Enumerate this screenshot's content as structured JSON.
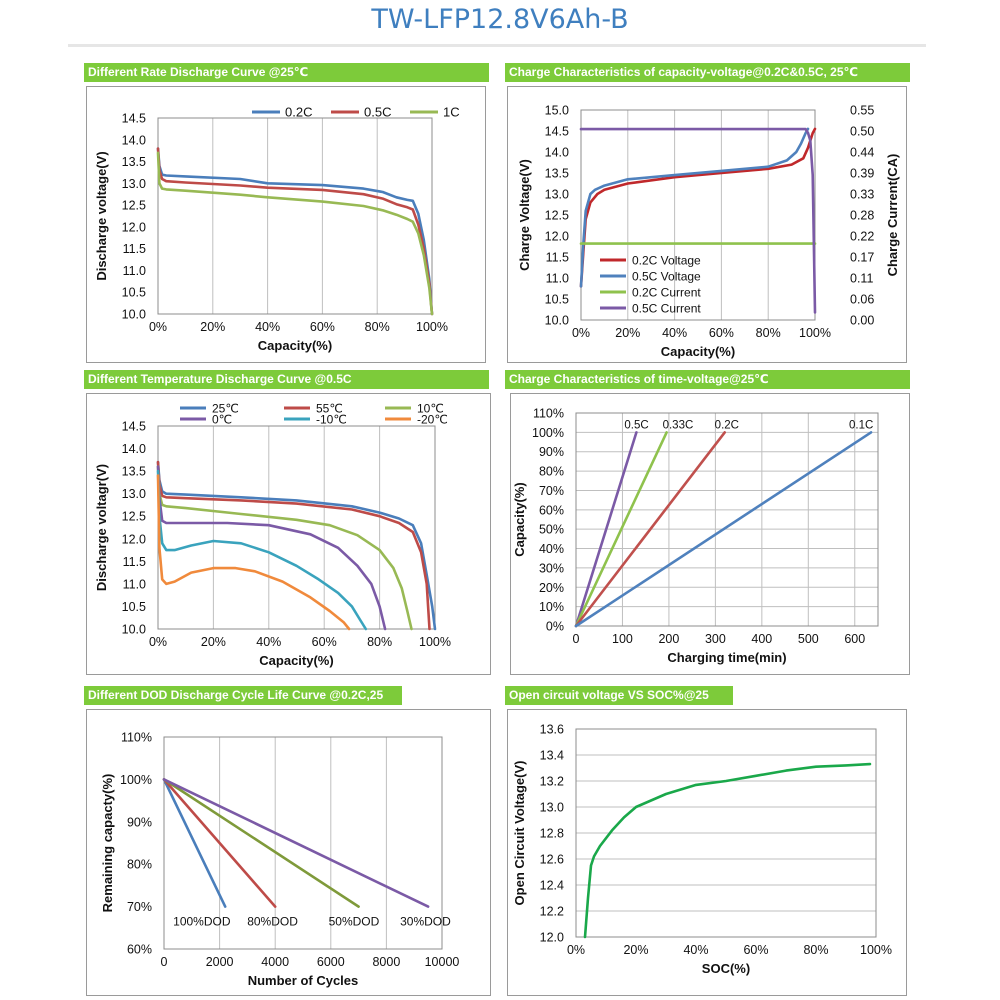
{
  "title": "TW-LFP12.8V6Ah-B",
  "headers": [
    "Different Rate Discharge Curve @25℃",
    "Charge  Characteristics of capacity-voltage@0.2C&0.5C, 25℃",
    "Different Temperature Discharge Curve @0.5C",
    "Charge  Characteristics of time-voltage@25℃",
    "Different DOD Discharge Cycle Life Curve @0.2C,25",
    "Open circuit voltage VS SOC%@25"
  ],
  "chart_data": [
    {
      "type": "line",
      "title": "Different Rate Discharge Curve @25℃",
      "xlabel": "Capacity(%)",
      "ylabel": "Discharge voltage(V)",
      "xlim": [
        0,
        100
      ],
      "ylim": [
        10.0,
        14.5
      ],
      "xticks": [
        "0%",
        "20%",
        "40%",
        "60%",
        "80%",
        "100%"
      ],
      "yticks": [
        "10.0",
        "10.5",
        "11.0",
        "11.5",
        "12.0",
        "12.5",
        "13.0",
        "13.5",
        "14.0",
        "14.5"
      ],
      "grid": "vertical",
      "legend": "top",
      "series": [
        {
          "name": "0.2C",
          "color": "#4a7ebb",
          "x": [
            0,
            0.5,
            1.5,
            3,
            10,
            30,
            40,
            60,
            75,
            82,
            87,
            91,
            93,
            95,
            97,
            99,
            100
          ],
          "y": [
            13.8,
            13.4,
            13.2,
            13.18,
            13.16,
            13.1,
            13.0,
            12.96,
            12.88,
            12.8,
            12.68,
            12.62,
            12.6,
            12.3,
            11.7,
            10.8,
            10.0
          ]
        },
        {
          "name": "0.5C",
          "color": "#be4b48",
          "x": [
            0,
            0.5,
            1.5,
            3,
            10,
            30,
            40,
            60,
            75,
            82,
            87,
            91,
            93,
            95,
            97,
            99,
            100
          ],
          "y": [
            13.8,
            13.3,
            13.1,
            13.05,
            13.02,
            12.95,
            12.9,
            12.85,
            12.75,
            12.65,
            12.52,
            12.45,
            12.4,
            12.05,
            11.5,
            10.7,
            10.0
          ]
        },
        {
          "name": "1C",
          "color": "#98b954",
          "x": [
            0,
            0.5,
            1.5,
            3,
            10,
            30,
            40,
            60,
            75,
            82,
            87,
            91,
            93,
            95,
            97,
            99,
            100
          ],
          "y": [
            13.7,
            13.0,
            12.88,
            12.86,
            12.83,
            12.74,
            12.68,
            12.58,
            12.48,
            12.38,
            12.28,
            12.18,
            12.12,
            11.85,
            11.35,
            10.6,
            10.0
          ]
        }
      ]
    },
    {
      "type": "line",
      "title": "Charge  Characteristics of capacity-voltage@0.2C&0.5C, 25℃",
      "xlabel": "Capacity(%)",
      "ylabel": "Charge Voltage(V)",
      "y2label": "Charge Current(CA)",
      "xlim": [
        0,
        100
      ],
      "ylim": [
        10.0,
        15.0
      ],
      "y2lim": [
        0.0,
        0.55
      ],
      "xticks": [
        "0%",
        "20%",
        "40%",
        "60%",
        "80%",
        "100%"
      ],
      "yticks": [
        "10.0",
        "10.5",
        "11.0",
        "11.5",
        "12.0",
        "12.5",
        "13.0",
        "13.5",
        "14.0",
        "14.5",
        "15.0"
      ],
      "y2ticks": [
        "0.00",
        "0.06",
        "0.11",
        "0.17",
        "0.22",
        "0.28",
        "0.33",
        "0.39",
        "0.44",
        "0.50",
        "0.55"
      ],
      "grid": "vertical",
      "legend": "inside-left",
      "series": [
        {
          "name": "0.2C Voltage",
          "color": "#c0282b",
          "axis": "left",
          "x": [
            0,
            1,
            2,
            4,
            7,
            10,
            20,
            40,
            60,
            80,
            90,
            95,
            97,
            99,
            100
          ],
          "y": [
            10.8,
            11.6,
            12.4,
            12.8,
            13.0,
            13.1,
            13.25,
            13.4,
            13.5,
            13.6,
            13.7,
            13.85,
            14.1,
            14.45,
            14.55
          ]
        },
        {
          "name": "0.5C Voltage",
          "color": "#4f81bd",
          "axis": "left",
          "x": [
            0,
            1,
            2,
            4,
            6,
            10,
            20,
            40,
            60,
            80,
            88,
            92,
            94,
            96,
            97
          ],
          "y": [
            10.8,
            11.8,
            12.6,
            13.0,
            13.1,
            13.2,
            13.35,
            13.45,
            13.55,
            13.65,
            13.8,
            14.0,
            14.2,
            14.45,
            14.55
          ]
        },
        {
          "name": "0.2C Current",
          "color": "#8fc24d",
          "axis": "right",
          "x": [
            0,
            100
          ],
          "y": [
            0.2,
            0.2
          ]
        },
        {
          "name": "0.5C Current",
          "color": "#7b5aa6",
          "axis": "right",
          "x": [
            0,
            96,
            97,
            98,
            99,
            100
          ],
          "y": [
            0.5,
            0.5,
            0.49,
            0.47,
            0.38,
            0.02
          ]
        }
      ]
    },
    {
      "type": "line",
      "title": "Different Temperature Discharge Curve @0.5C",
      "xlabel": "Capacity(%)",
      "ylabel": "Discharge voltagr(V)",
      "xlim": [
        0,
        100
      ],
      "ylim": [
        10.0,
        14.5
      ],
      "xticks": [
        "0%",
        "20%",
        "40%",
        "60%",
        "80%",
        "100%"
      ],
      "yticks": [
        "10.0",
        "10.5",
        "11.0",
        "11.5",
        "12.0",
        "12.5",
        "13.0",
        "13.5",
        "14.0",
        "14.5"
      ],
      "grid": "vertical",
      "legend": "top",
      "series": [
        {
          "name": "25℃",
          "color": "#4a7ebb",
          "x": [
            0,
            0.5,
            1.5,
            3,
            10,
            30,
            50,
            70,
            80,
            87,
            92,
            95,
            97,
            99,
            100
          ],
          "y": [
            13.7,
            13.3,
            13.05,
            13.0,
            12.98,
            12.92,
            12.85,
            12.72,
            12.58,
            12.45,
            12.3,
            11.9,
            11.2,
            10.5,
            10.0
          ]
        },
        {
          "name": "55℃",
          "color": "#be4b48",
          "x": [
            0,
            0.5,
            1.5,
            3,
            10,
            30,
            50,
            70,
            80,
            87,
            92,
            95,
            97,
            98
          ],
          "y": [
            13.7,
            13.2,
            12.95,
            12.92,
            12.9,
            12.85,
            12.78,
            12.65,
            12.5,
            12.35,
            12.15,
            11.7,
            11.0,
            10.0
          ]
        },
        {
          "name": "10℃",
          "color": "#98b954",
          "x": [
            0,
            0.5,
            1.5,
            3,
            10,
            30,
            50,
            62,
            72,
            80,
            85,
            88,
            90,
            91.5
          ],
          "y": [
            13.6,
            13.0,
            12.75,
            12.72,
            12.68,
            12.55,
            12.42,
            12.3,
            12.08,
            11.75,
            11.35,
            10.9,
            10.4,
            10.0
          ]
        },
        {
          "name": "0℃",
          "color": "#7b5aa6",
          "x": [
            0,
            0.5,
            1.5,
            3,
            10,
            25,
            40,
            55,
            65,
            72,
            77,
            80,
            82
          ],
          "y": [
            13.6,
            12.9,
            12.4,
            12.35,
            12.35,
            12.35,
            12.3,
            12.1,
            11.8,
            11.4,
            11.0,
            10.5,
            10.0
          ]
        },
        {
          "name": "-10℃",
          "color": "#3aa3bd",
          "x": [
            0,
            0.5,
            1.5,
            3,
            6,
            12,
            20,
            30,
            40,
            50,
            58,
            65,
            70,
            73,
            75
          ],
          "y": [
            13.5,
            12.5,
            11.9,
            11.75,
            11.75,
            11.85,
            11.95,
            11.9,
            11.7,
            11.4,
            11.1,
            10.8,
            10.5,
            10.2,
            10.0
          ]
        },
        {
          "name": "-20℃",
          "color": "#f08a3c",
          "x": [
            0,
            0.5,
            1.5,
            3,
            6,
            12,
            20,
            28,
            35,
            45,
            55,
            62,
            67,
            69
          ],
          "y": [
            13.4,
            11.8,
            11.1,
            11.0,
            11.05,
            11.25,
            11.35,
            11.35,
            11.28,
            11.05,
            10.7,
            10.4,
            10.15,
            10.0
          ]
        }
      ]
    },
    {
      "type": "line",
      "title": "Charge  Characteristics of time-voltage@25℃",
      "xlabel": "Charging time(min)",
      "ylabel": "Capacity(%)",
      "xlim": [
        0,
        650
      ],
      "ylim": [
        0,
        110
      ],
      "xticks": [
        "0",
        "100",
        "200",
        "300",
        "400",
        "500",
        "600"
      ],
      "yticks": [
        "0%",
        "10%",
        "20%",
        "30%",
        "40%",
        "50%",
        "60%",
        "70%",
        "80%",
        "90%",
        "100%",
        "110%"
      ],
      "grid": "both",
      "legend": "line-end",
      "series": [
        {
          "name": "0.5C",
          "color": "#7b5aa6",
          "x": [
            0,
            130
          ],
          "y": [
            0,
            100
          ]
        },
        {
          "name": "0.33C",
          "color": "#8fc24d",
          "x": [
            0,
            195
          ],
          "y": [
            0,
            100
          ]
        },
        {
          "name": "0.2C",
          "color": "#c0504d",
          "x": [
            0,
            320
          ],
          "y": [
            0,
            100
          ]
        },
        {
          "name": "0.1C",
          "color": "#4f81bd",
          "x": [
            0,
            635
          ],
          "y": [
            0,
            100
          ]
        }
      ]
    },
    {
      "type": "line",
      "title": "Different DOD Discharge Cycle Life Curve @0.2C,25",
      "xlabel": "Number of Cycles",
      "ylabel": "Remaining capacty(%)",
      "xlim": [
        0,
        10000
      ],
      "ylim": [
        60,
        110
      ],
      "xticks": [
        "0",
        "2000",
        "4000",
        "6000",
        "8000",
        "10000"
      ],
      "yticks": [
        "60%",
        "70%",
        "80%",
        "90%",
        "100%",
        "110%"
      ],
      "grid": "vertical",
      "legend": "line-end",
      "series": [
        {
          "name": "100%DOD",
          "color": "#4a7ebb",
          "x": [
            0,
            2200
          ],
          "y": [
            100,
            70
          ]
        },
        {
          "name": "80%DOD",
          "color": "#be4b48",
          "x": [
            0,
            4000
          ],
          "y": [
            100,
            70
          ]
        },
        {
          "name": "50%DOD",
          "color": "#7f9a3a",
          "x": [
            0,
            7000
          ],
          "y": [
            100,
            70
          ]
        },
        {
          "name": "30%DOD",
          "color": "#7b5aa6",
          "x": [
            0,
            9500
          ],
          "y": [
            100,
            70
          ]
        }
      ]
    },
    {
      "type": "line",
      "title": "Open circuit voltage VS SOC%@25",
      "xlabel": "SOC(%)",
      "ylabel": "Open Circuit Voltage(V)",
      "xlim": [
        0,
        100
      ],
      "ylim": [
        12.0,
        13.6
      ],
      "xticks": [
        "0%",
        "20%",
        "40%",
        "60%",
        "80%",
        "100%"
      ],
      "yticks": [
        "12.0",
        "12.2",
        "12.4",
        "12.6",
        "12.8",
        "13.0",
        "13.2",
        "13.4",
        "13.6"
      ],
      "grid": "horizontal",
      "series": [
        {
          "name": "",
          "color": "#1aa84a",
          "x": [
            3,
            4,
            5,
            6,
            8,
            12,
            16,
            20,
            30,
            40,
            50,
            60,
            70,
            80,
            90,
            98
          ],
          "y": [
            12.0,
            12.3,
            12.55,
            12.62,
            12.7,
            12.82,
            12.92,
            13.0,
            13.1,
            13.17,
            13.2,
            13.24,
            13.28,
            13.31,
            13.32,
            13.33
          ]
        }
      ]
    }
  ]
}
